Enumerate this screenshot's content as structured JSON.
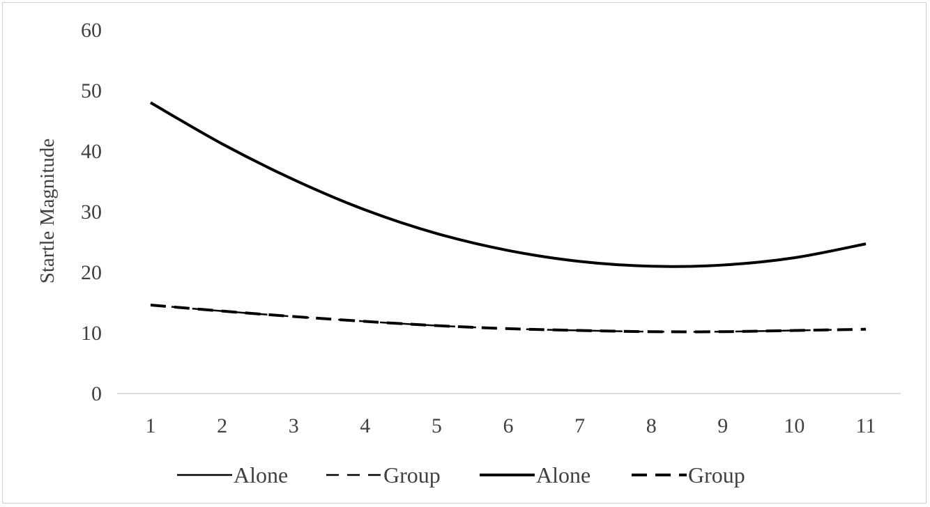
{
  "chart_data": {
    "type": "line",
    "title": "",
    "xlabel": "",
    "ylabel": "Startle Magnitude",
    "categories": [
      "1",
      "2",
      "3",
      "4",
      "5",
      "6",
      "7",
      "8",
      "9",
      "10",
      "11"
    ],
    "ylim": [
      0,
      60
    ],
    "yticks": [
      "0",
      "10",
      "20",
      "30",
      "40",
      "50",
      "60"
    ],
    "grid": false,
    "legend_position": "bottom",
    "series": [
      {
        "name": "Alone",
        "line": "solid",
        "width": "thin",
        "color": "#000000",
        "values": [
          48.0,
          41.2,
          35.3,
          30.3,
          26.4,
          23.6,
          21.8,
          21.0,
          21.2,
          22.4,
          24.7
        ]
      },
      {
        "name": "Group",
        "line": "dashed",
        "width": "thin",
        "color": "#000000",
        "values": [
          14.6,
          13.6,
          12.7,
          11.9,
          11.2,
          10.7,
          10.4,
          10.2,
          10.2,
          10.4,
          10.6
        ]
      },
      {
        "name": "Alone",
        "line": "solid",
        "width": "thick",
        "color": "#000000",
        "values": [
          48.0,
          41.2,
          35.3,
          30.3,
          26.4,
          23.6,
          21.8,
          21.0,
          21.2,
          22.4,
          24.7
        ]
      },
      {
        "name": "Group",
        "line": "dashed",
        "width": "thick",
        "color": "#000000",
        "values": [
          14.6,
          13.6,
          12.7,
          11.9,
          11.2,
          10.7,
          10.4,
          10.2,
          10.2,
          10.4,
          10.6
        ]
      }
    ]
  }
}
